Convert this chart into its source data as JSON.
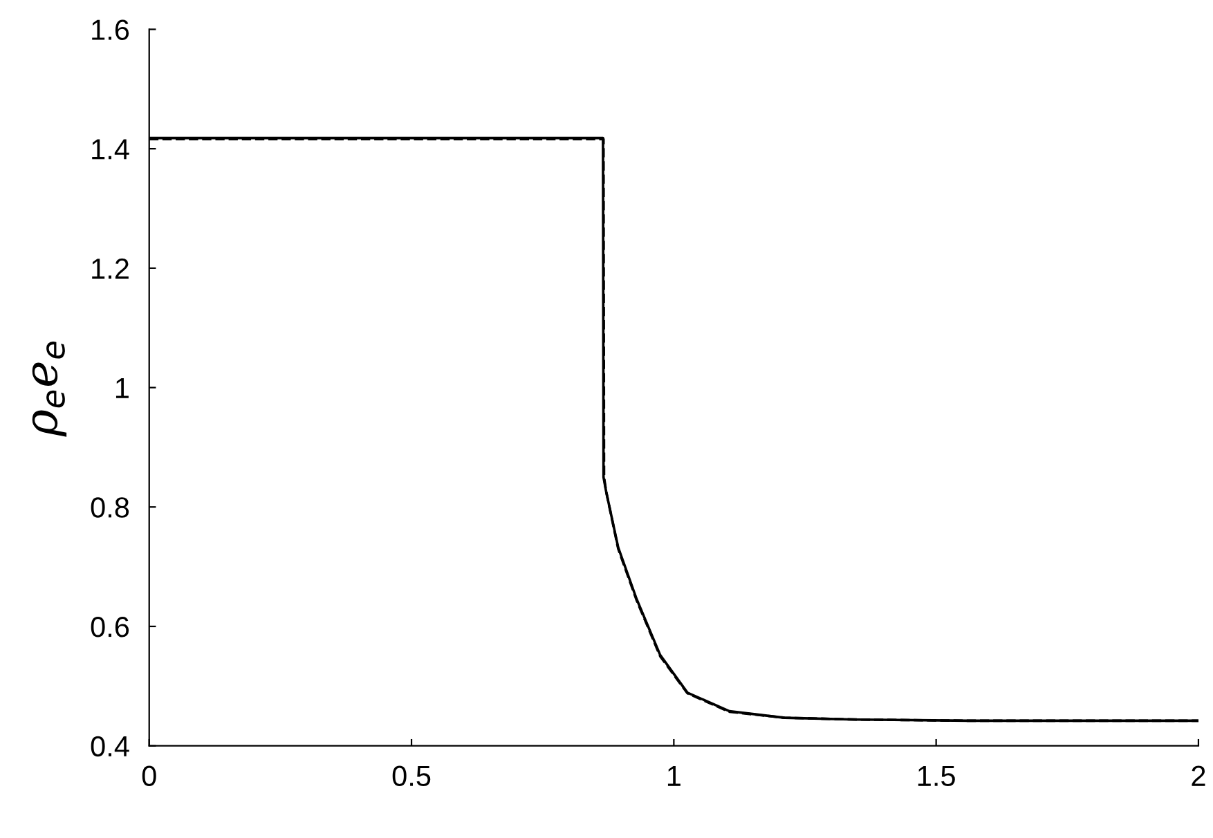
{
  "chart_data": {
    "type": "line",
    "ylabel": "ρ$_{e}$e$_{e}$",
    "xlim": [
      0,
      2
    ],
    "ylim": [
      0.4,
      1.6
    ],
    "xticks": [
      0,
      0.5,
      1,
      1.5,
      2
    ],
    "yticks": [
      0.4,
      0.6,
      0.8,
      1,
      1.2,
      1.4,
      1.6
    ],
    "grid": false,
    "legend": false,
    "series": [
      {
        "color": "#000000",
        "line_style": "solid",
        "x": [
          0,
          0.5,
          0.865,
          0.866,
          0.871,
          0.894,
          0.929,
          0.974,
          1.026,
          1.106,
          1.211,
          1.35,
          1.562,
          2
        ],
        "values": [
          1.418,
          1.418,
          1.418,
          0.85,
          0.826,
          0.732,
          0.646,
          0.552,
          0.489,
          0.458,
          0.447,
          0.444,
          0.442,
          0.442
        ]
      },
      {
        "color": "#000000",
        "line_style": "dashed",
        "x": [
          0,
          0.5,
          0.866,
          0.867,
          0.871,
          0.894,
          0.929,
          0.974,
          1.026,
          1.106,
          1.211,
          1.35,
          1.562,
          2
        ],
        "values": [
          1.416,
          1.416,
          1.416,
          0.85,
          0.826,
          0.73,
          0.644,
          0.55,
          0.488,
          0.457,
          0.447,
          0.444,
          0.442,
          0.442
        ]
      }
    ]
  }
}
